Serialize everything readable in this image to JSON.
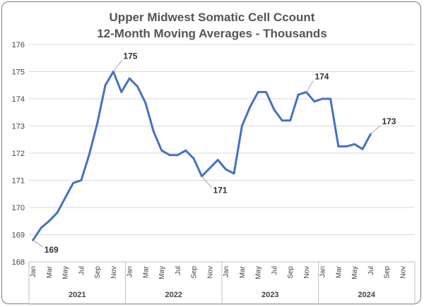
{
  "chart_data": {
    "type": "line",
    "title": "Upper Midwest Somatic Cell Ccount",
    "subtitle": "12-Month Moving Averages - Thousands",
    "ylim": [
      168,
      176
    ],
    "y_ticks": [
      "168",
      "169",
      "170",
      "171",
      "172",
      "173",
      "174",
      "175",
      "176"
    ],
    "grid": true,
    "month_tick_labels": [
      "Jan",
      "Mar",
      "May",
      "Jul",
      "Sep",
      "Nov"
    ],
    "years": [
      "2021",
      "2022",
      "2023",
      "2024"
    ],
    "x": [
      "Jan 2021",
      "Feb 2021",
      "Mar 2021",
      "Apr 2021",
      "May 2021",
      "Jun 2021",
      "Jul 2021",
      "Aug 2021",
      "Sep 2021",
      "Oct 2021",
      "Nov 2021",
      "Dec 2021",
      "Jan 2022",
      "Feb 2022",
      "Mar 2022",
      "Apr 2022",
      "May 2022",
      "Jun 2022",
      "Jul 2022",
      "Aug 2022",
      "Sep 2022",
      "Oct 2022",
      "Nov 2022",
      "Dec 2022",
      "Jan 2023",
      "Feb 2023",
      "Mar 2023",
      "Apr 2023",
      "May 2023",
      "Jun 2023",
      "Jul 2023",
      "Aug 2023",
      "Sep 2023",
      "Oct 2023",
      "Nov 2023",
      "Dec 2023",
      "Jan 2024",
      "Feb 2024",
      "Mar 2024",
      "Apr 2024",
      "May 2024",
      "Jun 2024",
      "Jul 2024"
    ],
    "series": [
      {
        "color": "#4472C4",
        "values": [
          168.8,
          169.25,
          169.5,
          169.8,
          170.35,
          170.9,
          171.0,
          171.95,
          173.1,
          174.5,
          175.0,
          174.25,
          174.75,
          174.45,
          173.85,
          172.8,
          172.1,
          171.93,
          171.93,
          172.1,
          171.8,
          171.15,
          171.45,
          171.75,
          171.4,
          171.25,
          173.0,
          173.7,
          174.25,
          174.25,
          173.6,
          173.2,
          173.2,
          174.15,
          174.25,
          173.9,
          174.0,
          174.0,
          172.25,
          172.25,
          172.33,
          172.15,
          172.7
        ]
      }
    ],
    "annotations": [
      {
        "text": "169",
        "index": 0
      },
      {
        "text": "175",
        "index": 10
      },
      {
        "text": "171",
        "index": 21
      },
      {
        "text": "174",
        "index": 34
      },
      {
        "text": "173",
        "index": 42
      }
    ]
  }
}
